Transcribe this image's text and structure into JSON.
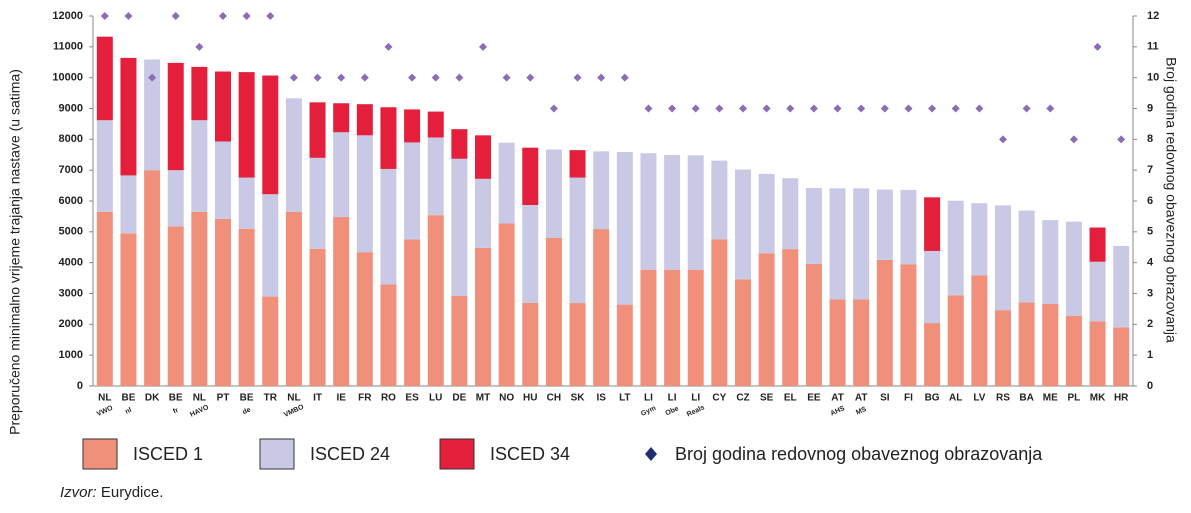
{
  "chart_data": {
    "type": "bar",
    "stacked": true,
    "categories": [
      "NL",
      "BE",
      "DK",
      "BE",
      "NL",
      "PT",
      "BE",
      "TR",
      "NL",
      "IT",
      "IE",
      "FR",
      "RO",
      "ES",
      "LU",
      "DE",
      "MT",
      "NO",
      "HU",
      "CH",
      "SK",
      "IS",
      "LT",
      "LI",
      "LI",
      "LI",
      "CY",
      "CZ",
      "SE",
      "EL",
      "EE",
      "AT",
      "AT",
      "SI",
      "FI",
      "BG",
      "AL",
      "LV",
      "RS",
      "BA",
      "ME",
      "PL",
      "MK",
      "HR"
    ],
    "sublabels": [
      "VWO",
      "nl",
      null,
      "fr",
      "HAVO",
      null,
      "de",
      null,
      "VMBO",
      null,
      null,
      null,
      null,
      null,
      null,
      null,
      null,
      null,
      null,
      null,
      null,
      null,
      null,
      "Gym",
      "Obe",
      "Reals",
      null,
      null,
      null,
      null,
      null,
      "AHS",
      "MS",
      null,
      null,
      null,
      null,
      null,
      null,
      null,
      null,
      null,
      null,
      null
    ],
    "series": [
      {
        "name": "ISCED 1",
        "color": "#f0907a",
        "values": [
          5650,
          4950,
          7000,
          5180,
          5650,
          5420,
          5100,
          2900,
          5650,
          4450,
          5480,
          4340,
          3300,
          4750,
          5540,
          2920,
          4480,
          5270,
          2700,
          4800,
          2690,
          5090,
          2640,
          3770,
          3770,
          3770,
          4760,
          3460,
          4300,
          4440,
          3960,
          2810,
          2810,
          4090,
          3950,
          2040,
          2940,
          3590,
          2460,
          2710,
          2660,
          2270,
          2100,
          1900
        ]
      },
      {
        "name": "ISCED 24",
        "color": "#c9c9e6",
        "values": [
          2970,
          1880,
          3590,
          1820,
          2970,
          2510,
          1660,
          3320,
          3680,
          2950,
          2750,
          3790,
          3740,
          3150,
          2520,
          4450,
          2240,
          2620,
          3170,
          2870,
          4070,
          2520,
          4950,
          3780,
          3720,
          3710,
          2550,
          3560,
          2580,
          2300,
          2460,
          3600,
          3600,
          2280,
          2410,
          2340,
          3070,
          2340,
          3400,
          2980,
          2720,
          3060,
          1930,
          2640
        ]
      },
      {
        "name": "ISCED 34",
        "color": "#e41f3b",
        "values": [
          2710,
          3810,
          null,
          3480,
          1730,
          2270,
          3420,
          3850,
          null,
          1800,
          940,
          1010,
          2000,
          1070,
          840,
          960,
          1410,
          null,
          1860,
          null,
          890,
          null,
          null,
          null,
          null,
          null,
          null,
          null,
          null,
          null,
          null,
          null,
          null,
          null,
          null,
          1740,
          null,
          null,
          null,
          null,
          null,
          null,
          1110,
          null
        ]
      },
      {
        "name": "Broj godina redovnog obaveznog obrazovanja",
        "color": "#8a6db5",
        "legend_color": "#1f2f6e",
        "axis": "y2",
        "values": [
          12,
          12,
          10,
          12,
          11,
          12,
          12,
          12,
          10,
          10,
          10,
          10,
          11,
          10,
          10,
          10,
          11,
          10,
          10,
          9,
          10,
          10,
          10,
          9,
          9,
          9,
          9,
          9,
          9,
          9,
          9,
          9,
          9,
          9,
          9,
          9,
          9,
          9,
          8,
          9,
          9,
          8,
          11,
          8
        ]
      }
    ],
    "ylim": [
      0,
      12000
    ],
    "yticks": [
      0,
      1000,
      2000,
      3000,
      4000,
      5000,
      6000,
      7000,
      8000,
      9000,
      10000,
      11000,
      12000
    ],
    "y2lim": [
      0,
      12
    ],
    "y2ticks": [
      0,
      1,
      2,
      3,
      4,
      5,
      6,
      7,
      8,
      9,
      10,
      11,
      12
    ],
    "ylabel": "Preporučeno minimalno vrijeme trajanja nastave  (u satima)",
    "y2label": "Broj godina redovnog obaveznog obrazovanja",
    "source_label": "Izvor:",
    "source": "Eurydice."
  }
}
